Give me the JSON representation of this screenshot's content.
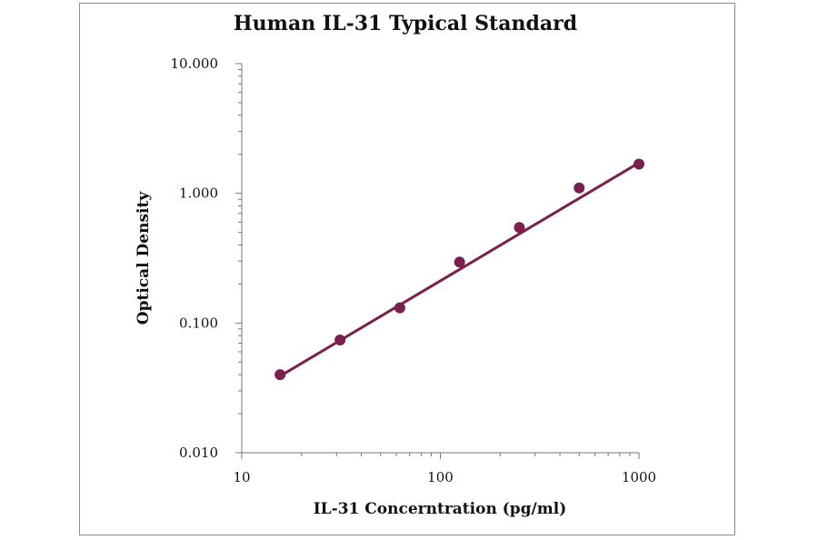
{
  "chart_data": {
    "type": "scatter",
    "title": "Human IL-31 Typical Standard",
    "xlabel": "IL-31 Concerntration (pg/ml)",
    "ylabel": "Optical Density",
    "x_scale": "log",
    "y_scale": "log",
    "xlim": [
      10,
      1000
    ],
    "ylim": [
      0.01,
      10
    ],
    "x_tick_labels": [
      "10",
      "100",
      "1000"
    ],
    "y_tick_labels": [
      "10.000",
      "1.000",
      "0.100",
      "0.010"
    ],
    "x_tick_values": [
      10,
      100,
      1000
    ],
    "y_tick_values": [
      10,
      1,
      0.1,
      0.01
    ],
    "grid": false,
    "colors": {
      "series": "#7b1f4e",
      "axis": "#777777",
      "text": "#111111"
    },
    "series": [
      {
        "x": [
          15.6,
          31.25,
          62.5,
          125,
          250,
          500,
          1000
        ],
        "y": [
          0.04,
          0.074,
          0.131,
          0.295,
          0.545,
          1.1,
          1.68
        ]
      }
    ],
    "trendline": {
      "x": [
        15.6,
        1000
      ],
      "y": [
        0.039,
        1.72
      ]
    }
  }
}
